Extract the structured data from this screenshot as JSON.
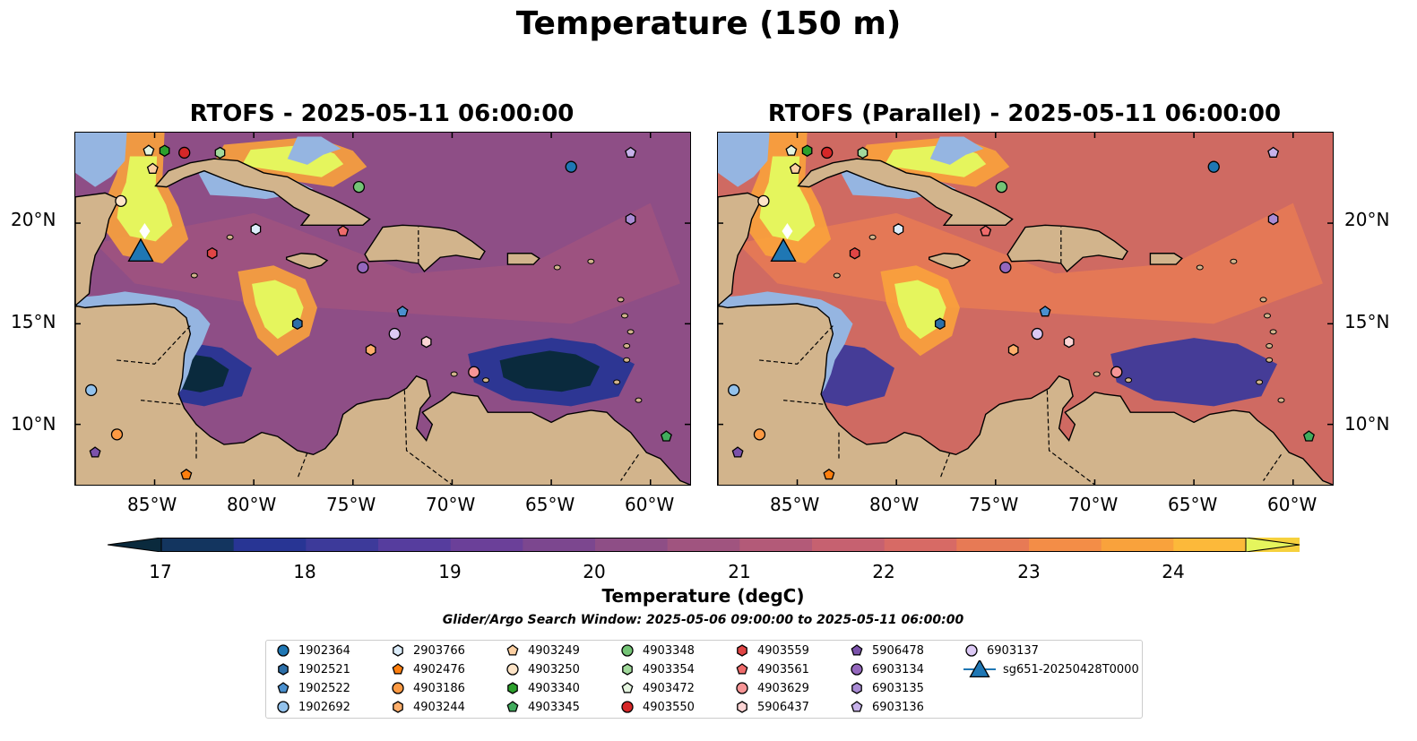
{
  "figure": {
    "title": "Temperature (150 m)",
    "panels": [
      {
        "title": "RTOFS - 2025-05-11 06:00:00"
      },
      {
        "title": "RTOFS (Parallel) - 2025-05-11 06:00:00"
      }
    ],
    "lon_ticks": [
      "85°W",
      "80°W",
      "75°W",
      "70°W",
      "65°W",
      "60°W"
    ],
    "lat_ticks": [
      "20°N",
      "15°N",
      "10°N"
    ],
    "map_extent": {
      "lon": [
        -89,
        -58
      ],
      "lat": [
        7,
        24.5
      ]
    }
  },
  "colorbar": {
    "label": "Temperature (degC)",
    "ticks": [
      "17",
      "18",
      "19",
      "20",
      "21",
      "22",
      "23",
      "24"
    ],
    "range": [
      16.6,
      24.6
    ],
    "colors": [
      "#0a2a3d",
      "#13355f",
      "#283594",
      "#3d3a9a",
      "#563d9e",
      "#6b4099",
      "#7c478f",
      "#8e4e86",
      "#a0547f",
      "#b35a78",
      "#c66170",
      "#d76a65",
      "#e77a55",
      "#f38d47",
      "#f9a23c",
      "#fcb93a",
      "#f6d13d",
      "#e5f55d"
    ]
  },
  "search_window": "Glider/Argo Search Window: 2025-05-06 09:00:00 to 2025-05-11 06:00:00",
  "legend": {
    "items": [
      {
        "label": "1902364",
        "marker": "circle",
        "color": "#1f77b4"
      },
      {
        "label": "1902521",
        "marker": "hexagon",
        "color": "#2c6fa8"
      },
      {
        "label": "1902522",
        "marker": "pentagon",
        "color": "#4a90cf"
      },
      {
        "label": "1902692",
        "marker": "circle",
        "color": "#93c2ec"
      },
      {
        "label": "2903766",
        "marker": "hexagon",
        "color": "#dcedfb"
      },
      {
        "label": "4902476",
        "marker": "pentagon",
        "color": "#ff7f0e"
      },
      {
        "label": "4903186",
        "marker": "circle",
        "color": "#fd9a43"
      },
      {
        "label": "4903244",
        "marker": "hexagon",
        "color": "#fdae6b"
      },
      {
        "label": "4903249",
        "marker": "pentagon",
        "color": "#fdd0a2"
      },
      {
        "label": "4903250",
        "marker": "circle",
        "color": "#fee4c7"
      },
      {
        "label": "4903340",
        "marker": "hexagon",
        "color": "#2ca02c"
      },
      {
        "label": "4903345",
        "marker": "pentagon",
        "color": "#41ab5d"
      },
      {
        "label": "4903348",
        "marker": "circle",
        "color": "#74c476"
      },
      {
        "label": "4903354",
        "marker": "hexagon",
        "color": "#a1d99b"
      },
      {
        "label": "4903472",
        "marker": "pentagon",
        "color": "#e5f5e0"
      },
      {
        "label": "4903550",
        "marker": "circle",
        "color": "#d62728"
      },
      {
        "label": "4903559",
        "marker": "hexagon",
        "color": "#e04545"
      },
      {
        "label": "4903561",
        "marker": "pentagon",
        "color": "#ef6b6b"
      },
      {
        "label": "4903629",
        "marker": "circle",
        "color": "#f79596"
      },
      {
        "label": "5906437",
        "marker": "hexagon",
        "color": "#fdd5d5"
      },
      {
        "label": "5906478",
        "marker": "pentagon",
        "color": "#7b52ab"
      },
      {
        "label": "6903134",
        "marker": "circle",
        "color": "#9467bd"
      },
      {
        "label": "6903135",
        "marker": "hexagon",
        "color": "#a98bd4"
      },
      {
        "label": "6903136",
        "marker": "pentagon",
        "color": "#c7b2ea"
      },
      {
        "label": "6903137",
        "marker": "circle",
        "color": "#dcc9f5"
      },
      {
        "label": "sg651-20250428T0000",
        "marker": "triangle",
        "color": "#1f77b4"
      }
    ]
  },
  "observations": [
    {
      "label": "1902364",
      "lon": -64.0,
      "lat": 22.8
    },
    {
      "label": "1902521",
      "lon": -77.8,
      "lat": 15.0
    },
    {
      "label": "1902522",
      "lon": -72.5,
      "lat": 15.6
    },
    {
      "label": "1902692",
      "lon": -88.2,
      "lat": 11.7
    },
    {
      "label": "2903766",
      "lon": -79.9,
      "lat": 19.7
    },
    {
      "label": "4902476",
      "lon": -83.4,
      "lat": 7.5
    },
    {
      "label": "4903186",
      "lon": -86.9,
      "lat": 9.5
    },
    {
      "label": "4903244",
      "lon": -74.1,
      "lat": 13.7
    },
    {
      "label": "4903249",
      "lon": -85.1,
      "lat": 22.7
    },
    {
      "label": "4903250",
      "lon": -86.7,
      "lat": 21.1
    },
    {
      "label": "4903340",
      "lon": -84.5,
      "lat": 23.6
    },
    {
      "label": "4903345",
      "lon": -59.2,
      "lat": 9.4
    },
    {
      "label": "4903348",
      "lon": -74.7,
      "lat": 21.8
    },
    {
      "label": "4903354",
      "lon": -81.7,
      "lat": 23.5
    },
    {
      "label": "4903472",
      "lon": -85.3,
      "lat": 23.6
    },
    {
      "label": "4903550",
      "lon": -83.5,
      "lat": 23.5
    },
    {
      "label": "4903559",
      "lon": -82.1,
      "lat": 18.5
    },
    {
      "label": "4903561",
      "lon": -75.5,
      "lat": 19.6
    },
    {
      "label": "4903629",
      "lon": -68.9,
      "lat": 12.6
    },
    {
      "label": "5906437",
      "lon": -71.3,
      "lat": 14.1
    },
    {
      "label": "5906478",
      "lon": -88.0,
      "lat": 8.6
    },
    {
      "label": "6903134",
      "lon": -74.5,
      "lat": 17.8
    },
    {
      "label": "6903135",
      "lon": -61.0,
      "lat": 20.2
    },
    {
      "label": "6903136",
      "lon": -61.0,
      "lat": 23.5
    },
    {
      "label": "6903137",
      "lon": -72.9,
      "lat": 14.5
    },
    {
      "label": "sg651-20250428T0000",
      "lon": -85.7,
      "lat": 18.6
    }
  ]
}
